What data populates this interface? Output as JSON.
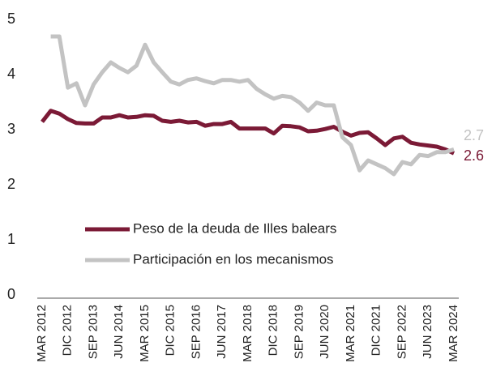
{
  "chart_data": {
    "type": "line",
    "categories": [
      "MAR 2012",
      null,
      null,
      "DIC 2012",
      null,
      null,
      "SEP 2013",
      null,
      null,
      "JUN 2014",
      null,
      null,
      "MAR 2015",
      null,
      null,
      "DIC 2015",
      null,
      null,
      "SEP 2016",
      null,
      null,
      "JUN 2017",
      null,
      null,
      "MAR 2018",
      null,
      null,
      "DIC 2018",
      null,
      null,
      "SEP 2019",
      null,
      null,
      "JUN 2020",
      null,
      null,
      "MAR 2021",
      null,
      null,
      "DIC 2021",
      null,
      null,
      "SEP 2022",
      null,
      null,
      "JUN 2023",
      null,
      null,
      "MAR 2024"
    ],
    "series": [
      {
        "name": "Peso de la deuda de Illes balears",
        "color": "#7b1a36",
        "values": [
          3.2,
          3.4,
          3.35,
          3.25,
          3.18,
          3.17,
          3.17,
          3.28,
          3.28,
          3.32,
          3.28,
          3.29,
          3.32,
          3.31,
          3.22,
          3.2,
          3.22,
          3.19,
          3.2,
          3.13,
          3.16,
          3.16,
          3.2,
          3.08,
          3.08,
          3.08,
          3.08,
          2.99,
          3.13,
          3.12,
          3.1,
          3.03,
          3.04,
          3.07,
          3.11,
          3.02,
          2.95,
          3.0,
          3.01,
          2.9,
          2.78,
          2.9,
          2.93,
          2.82,
          2.79,
          2.77,
          2.75,
          2.7,
          2.63
        ],
        "value_labels": [
          null,
          null,
          null,
          null,
          null,
          null,
          null,
          null,
          null,
          null,
          null,
          null,
          null,
          null,
          null,
          null,
          null,
          null,
          null,
          null,
          null,
          null,
          null,
          null,
          null,
          null,
          null,
          null,
          null,
          null,
          null,
          null,
          null,
          null,
          null,
          null,
          null,
          null,
          null,
          null,
          null,
          null,
          null,
          null,
          null,
          null,
          null,
          null,
          "2.6"
        ]
      },
      {
        "name": "Participación en los mecanismos",
        "color": "#c3c3c3",
        "values": [
          null,
          4.75,
          4.75,
          3.82,
          3.9,
          3.5,
          3.88,
          4.1,
          4.28,
          4.18,
          4.1,
          4.22,
          4.6,
          4.28,
          4.1,
          3.93,
          3.88,
          3.96,
          3.99,
          3.94,
          3.9,
          3.96,
          3.96,
          3.93,
          3.96,
          3.8,
          3.7,
          3.62,
          3.67,
          3.65,
          3.55,
          3.4,
          3.55,
          3.5,
          3.5,
          2.92,
          2.78,
          2.32,
          2.5,
          2.43,
          2.36,
          2.25,
          2.47,
          2.43,
          2.6,
          2.58,
          2.65,
          2.65,
          2.7
        ],
        "value_labels": [
          null,
          null,
          null,
          null,
          null,
          null,
          null,
          null,
          null,
          null,
          null,
          null,
          null,
          null,
          null,
          null,
          null,
          null,
          null,
          null,
          null,
          null,
          null,
          null,
          null,
          null,
          null,
          null,
          null,
          null,
          null,
          null,
          null,
          null,
          null,
          null,
          null,
          null,
          null,
          null,
          null,
          null,
          null,
          null,
          null,
          null,
          null,
          null,
          "2.7"
        ]
      }
    ],
    "ylim": [
      0,
      5
    ],
    "yticks": [
      0,
      1,
      2,
      3,
      4,
      5
    ],
    "grid": false,
    "legend": "center-left"
  }
}
